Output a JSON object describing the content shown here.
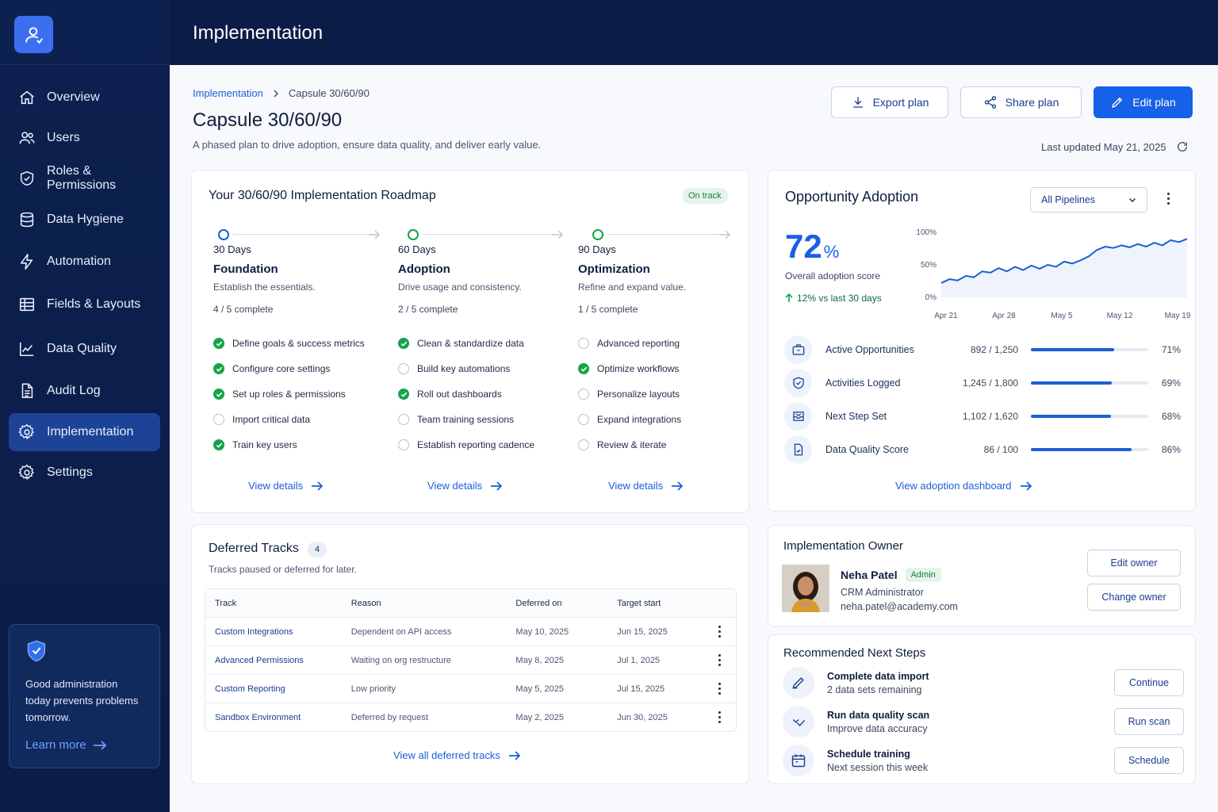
{
  "app": {
    "header_title": "Implementation"
  },
  "sidebar": {
    "items": [
      {
        "label": "Overview",
        "icon": "home-icon"
      },
      {
        "label": "Users",
        "icon": "users-icon"
      },
      {
        "label": "Roles & Permissions",
        "icon": "shield-icon"
      },
      {
        "label": "Data Hygiene",
        "icon": "database-icon"
      },
      {
        "label": "Automation",
        "icon": "lightning-icon"
      },
      {
        "label": "Fields & Layouts",
        "icon": "table-icon"
      },
      {
        "label": "Data Quality",
        "icon": "chart-line-icon"
      },
      {
        "label": "Audit Log",
        "icon": "document-icon"
      },
      {
        "label": "Implementation",
        "icon": "gear-icon",
        "active": true
      },
      {
        "label": "Settings",
        "icon": "gear-icon"
      }
    ],
    "promo": {
      "text": "Good administration today prevents problems tomorrow.",
      "link": "Learn more"
    }
  },
  "page": {
    "breadcrumb": {
      "parent": "Implementation",
      "current": "Capsule 30/60/90"
    },
    "title": "Capsule 30/60/90",
    "subtitle": "A phased plan to drive adoption, ensure data quality, and deliver early value.",
    "actions": {
      "export": "Export plan",
      "share": "Share plan",
      "edit": "Edit plan"
    },
    "last_updated": "Last updated May 21, 2025"
  },
  "roadmap": {
    "title": "Your 30/60/90 Implementation Roadmap",
    "status": "On track",
    "phases": [
      {
        "days": "30 Days",
        "name": "Foundation",
        "desc": "Establish the essentials.",
        "count": "4 / 5 complete",
        "tasks": [
          {
            "label": "Define goals & success metrics",
            "done": true
          },
          {
            "label": "Configure core settings",
            "done": true
          },
          {
            "label": "Set up roles & permissions",
            "done": true
          },
          {
            "label": "Import critical data",
            "done": false
          },
          {
            "label": "Train key users",
            "done": true
          }
        ],
        "link": "View details"
      },
      {
        "days": "60 Days",
        "name": "Adoption",
        "desc": "Drive usage and consistency.",
        "count": "2 / 5 complete",
        "tasks": [
          {
            "label": "Clean & standardize data",
            "done": true
          },
          {
            "label": "Build key automations",
            "done": false
          },
          {
            "label": "Roll out dashboards",
            "done": true
          },
          {
            "label": "Team training sessions",
            "done": false
          },
          {
            "label": "Establish reporting cadence",
            "done": false
          }
        ],
        "link": "View details"
      },
      {
        "days": "90 Days",
        "name": "Optimization",
        "desc": "Refine and expand value.",
        "count": "1 / 5 complete",
        "tasks": [
          {
            "label": "Advanced reporting",
            "done": false
          },
          {
            "label": "Optimize workflows",
            "done": true
          },
          {
            "label": "Personalize layouts",
            "done": false
          },
          {
            "label": "Expand integrations",
            "done": false
          },
          {
            "label": "Review & iterate",
            "done": false
          }
        ],
        "link": "View details"
      }
    ]
  },
  "deferred": {
    "title": "Deferred Tracks",
    "count": "4",
    "subtitle": "Tracks paused or deferred for later.",
    "columns": [
      "Track",
      "Reason",
      "Deferred on",
      "Target start"
    ],
    "rows": [
      [
        "Custom Integrations",
        "Dependent on API access",
        "May 10, 2025",
        "Jun 15, 2025"
      ],
      [
        "Advanced Permissions",
        "Waiting on org restructure",
        "May 8, 2025",
        "Jul 1, 2025"
      ],
      [
        "Custom Reporting",
        "Low priority",
        "May 5, 2025",
        "Jul 15, 2025"
      ],
      [
        "Sandbox Environment",
        "Deferred by request",
        "May 2, 2025",
        "Jun 30, 2025"
      ]
    ],
    "link": "View all deferred tracks"
  },
  "adoption": {
    "title": "Opportunity Adoption",
    "filter": "All Pipelines",
    "score_value": "72",
    "score_unit": "%",
    "score_label": "Overall adoption score",
    "trend": "12% vs last 30 days",
    "metrics": [
      {
        "name": "Active Opportunities",
        "value": "892 / 1,250",
        "pct": "71%",
        "fraction": 0.71,
        "icon": "briefcase-icon"
      },
      {
        "name": "Activities Logged",
        "value": "1,245 / 1,800",
        "pct": "69%",
        "fraction": 0.69,
        "icon": "calendar-check-icon"
      },
      {
        "name": "Next Step Set",
        "value": "1,102 / 1,620",
        "pct": "68%",
        "fraction": 0.68,
        "icon": "inbox-icon"
      },
      {
        "name": "Data Quality Score",
        "value": "86 / 100",
        "pct": "86%",
        "fraction": 0.86,
        "icon": "document-check-icon"
      }
    ],
    "link": "View adoption dashboard"
  },
  "chart_data": {
    "type": "line",
    "title": "",
    "xlabel": "",
    "ylabel": "",
    "x_ticks": [
      "Apr 21",
      "Apr 28",
      "May 5",
      "May 12",
      "May 19"
    ],
    "y_ticks": [
      "100%",
      "50%",
      "0%"
    ],
    "ylim": [
      0,
      100
    ],
    "series": [
      {
        "values": [
          22,
          28,
          26,
          33,
          31,
          40,
          38,
          45,
          40,
          47,
          42,
          49,
          44,
          50,
          47,
          55,
          52,
          57,
          63,
          73,
          78,
          76,
          80,
          77,
          82,
          78,
          84,
          80,
          88,
          85,
          90
        ]
      }
    ],
    "grid": false,
    "color": "#1b5fd6"
  },
  "owner": {
    "title": "Implementation Owner",
    "name": "Neha Patel",
    "badge": "Admin",
    "role": "CRM Administrator",
    "email": "neha.patel@academy.com",
    "edit": "Edit owner",
    "change": "Change owner"
  },
  "next_steps": {
    "title": "Recommended Next Steps",
    "items": [
      {
        "title": "Complete data import",
        "sub": "2 data sets remaining",
        "action": "Continue",
        "icon": "import-icon"
      },
      {
        "title": "Run data quality scan",
        "sub": "Improve data accuracy",
        "action": "Run scan",
        "icon": "check-scan-icon"
      },
      {
        "title": "Schedule training",
        "sub": "Next session this week",
        "action": "Schedule",
        "icon": "calendar-icon"
      }
    ]
  }
}
